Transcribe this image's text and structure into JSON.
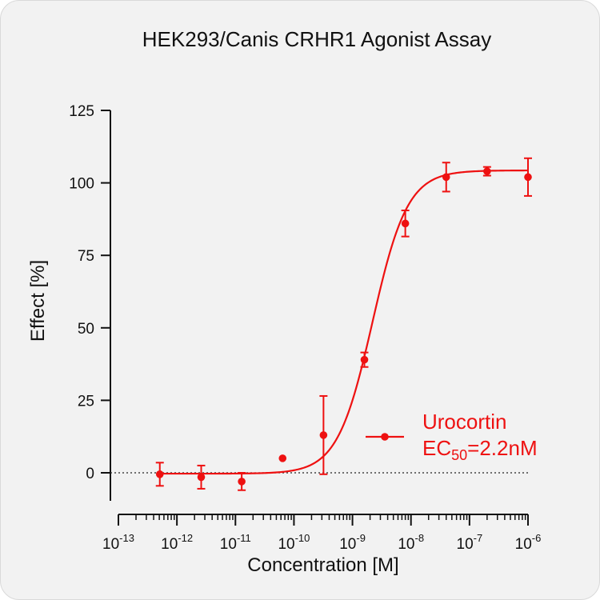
{
  "chart_data": {
    "type": "scatter",
    "title": "HEK293/Canis CRHR1 Agonist Assay",
    "xlabel": "Concentration [M]",
    "ylabel": "Effect  [%]",
    "x_scale": "log",
    "xlim": [
      1e-13,
      1e-06
    ],
    "ylim": [
      -10,
      125
    ],
    "y_ticks": [
      0,
      25,
      50,
      75,
      100,
      125
    ],
    "x_tick_exponents": [
      -13,
      -12,
      -11,
      -10,
      -9,
      -8,
      -7,
      -6
    ],
    "x_tick_base": "10",
    "baseline_y": 0,
    "grid": false,
    "legend_position": "center-right",
    "color": "#ee1111",
    "series": [
      {
        "name": "Urocortin",
        "points": [
          {
            "x": 5.1e-13,
            "y": -0.5,
            "err": 4.0
          },
          {
            "x": 2.6e-12,
            "y": -1.5,
            "err": 4.0
          },
          {
            "x": 1.28e-11,
            "y": -3.0,
            "err": 3.0
          },
          {
            "x": 6.4e-11,
            "y": 5.0,
            "err": 0
          },
          {
            "x": 3.2e-10,
            "y": 13.0,
            "err": 13.5
          },
          {
            "x": 1.6e-09,
            "y": 39.0,
            "err": 2.5
          },
          {
            "x": 8e-09,
            "y": 86.0,
            "err": 4.5
          },
          {
            "x": 4e-08,
            "y": 102.0,
            "err": 5.0
          },
          {
            "x": 2e-07,
            "y": 104.0,
            "err": 1.5
          },
          {
            "x": 1e-06,
            "y": 102.0,
            "err": 6.5
          }
        ],
        "fit": {
          "bottom": -0.3,
          "top": 104.3,
          "ec50": 2.2e-09,
          "hill": 1.45,
          "x_range": [
            5.1e-13,
            1e-06
          ]
        }
      }
    ],
    "legend": {
      "series_name": "Urocortin",
      "ec_label_main": "EC",
      "ec_label_sub": "50",
      "ec_label_value": "=2.2nM"
    }
  }
}
